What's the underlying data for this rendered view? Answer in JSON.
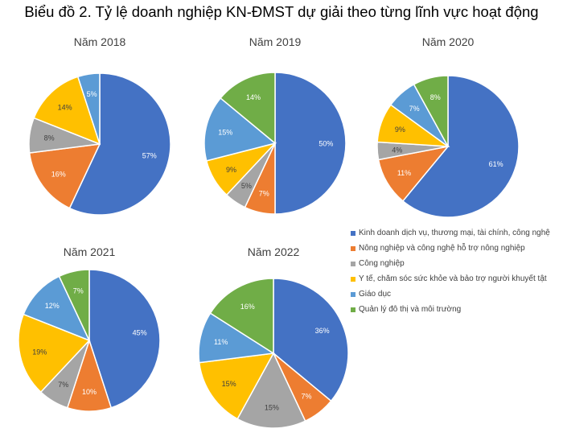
{
  "title": "Biểu đồ 2. Tỷ lệ doanh nghiệp KN-ĐMST dự giải theo từng lĩnh vực hoạt động",
  "chart_data": [
    {
      "type": "pie",
      "title": "Năm 2018",
      "categories": [
        "Kinh doanh dịch vụ, thương mại, tài chính, công nghệ",
        "Nông nghiệp và công nghệ hỗ trợ nông nghiệp",
        "Công nghiệp",
        "Y tế, chăm sóc sức khỏe và bảo trợ người khuyết tật",
        "Giáo dục",
        "Quản lý đô thị và môi trường"
      ],
      "values": [
        57,
        16,
        8,
        14,
        5,
        0
      ],
      "labels": [
        "57%",
        "16%",
        "8%",
        "14%",
        "5%",
        ""
      ]
    },
    {
      "type": "pie",
      "title": "Năm 2019",
      "categories": [
        "Kinh doanh dịch vụ, thương mại, tài chính, công nghệ",
        "Nông nghiệp và công nghệ hỗ trợ nông nghiệp",
        "Công nghiệp",
        "Y tế, chăm sóc sức khỏe và bảo trợ người khuyết tật",
        "Giáo dục",
        "Quản lý đô thị và môi trường"
      ],
      "values": [
        50,
        7,
        5,
        9,
        15,
        14
      ],
      "labels": [
        "50%",
        "7%",
        "5%",
        "9%",
        "15%",
        "14%"
      ]
    },
    {
      "type": "pie",
      "title": "Năm 2020",
      "categories": [
        "Kinh doanh dịch vụ, thương mại, tài chính, công nghệ",
        "Nông nghiệp và công nghệ hỗ trợ nông nghiệp",
        "Công nghiệp",
        "Y tế, chăm sóc sức khỏe và bảo trợ người khuyết tật",
        "Giáo dục",
        "Quản lý đô thị và môi trường"
      ],
      "values": [
        61,
        11,
        4,
        9,
        7,
        8
      ],
      "labels": [
        "61%",
        "11%",
        "4%",
        "9%",
        "7%",
        "8%"
      ]
    },
    {
      "type": "pie",
      "title": "Năm 2021",
      "categories": [
        "Kinh doanh dịch vụ, thương mại, tài chính, công nghệ",
        "Nông nghiệp và công nghệ hỗ trợ nông nghiệp",
        "Công nghiệp",
        "Y tế, chăm sóc sức khỏe và bảo trợ người khuyết tật",
        "Giáo dục",
        "Quản lý đô thị và môi trường"
      ],
      "values": [
        45,
        10,
        7,
        19,
        12,
        7
      ],
      "labels": [
        "45%",
        "10%",
        "7%",
        "19%",
        "12%",
        "7%"
      ]
    },
    {
      "type": "pie",
      "title": "Năm 2022",
      "categories": [
        "Kinh doanh dịch vụ, thương mại, tài chính, công nghệ",
        "Nông nghiệp và công nghệ hỗ trợ nông nghiệp",
        "Công nghiệp",
        "Y tế, chăm sóc sức khỏe và bảo trợ người khuyết tật",
        "Giáo dục",
        "Quản lý đô thị và môi trường"
      ],
      "values": [
        36,
        7,
        15,
        15,
        11,
        16
      ],
      "labels": [
        "36%",
        "7%",
        "15%",
        "15%",
        "11%",
        "16%"
      ]
    }
  ],
  "legend": [
    {
      "label": "Kinh doanh dịch vụ, thương mại, tài chính, công nghệ",
      "color": "#4472C4"
    },
    {
      "label": "Nông nghiệp và công nghệ hỗ trợ nông nghiệp",
      "color": "#ED7D31"
    },
    {
      "label": "Công nghiệp",
      "color": "#A5A5A5"
    },
    {
      "label": "Y tế, chăm sóc sức khỏe và bảo trợ người khuyết tật",
      "color": "#FFC000"
    },
    {
      "label": "Giáo dục",
      "color": "#5B9BD5"
    },
    {
      "label": "Quản lý đô thị và môi trường",
      "color": "#70AD47"
    }
  ]
}
